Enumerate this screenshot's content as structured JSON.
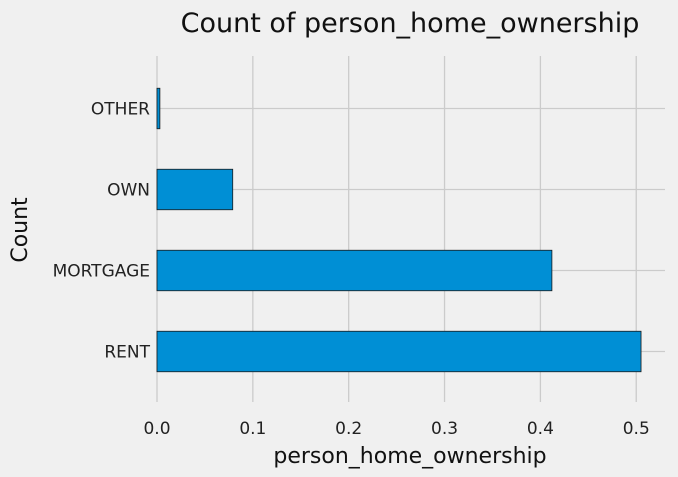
{
  "chart_data": {
    "type": "bar",
    "orientation": "horizontal",
    "title": "Count of person_home_ownership",
    "xlabel": "person_home_ownership",
    "ylabel": "Count",
    "categories": [
      "RENT",
      "MORTGAGE",
      "OWN",
      "OTHER"
    ],
    "values": [
      0.505,
      0.412,
      0.079,
      0.003
    ],
    "xlim": [
      0,
      0.53
    ],
    "xticks": [
      0.0,
      0.1,
      0.2,
      0.3,
      0.4,
      0.5
    ],
    "xtick_labels": [
      "0.0",
      "0.1",
      "0.2",
      "0.3",
      "0.4",
      "0.5"
    ],
    "grid": true,
    "bar_color": "#008fd5",
    "background": "#f0f0f0"
  }
}
